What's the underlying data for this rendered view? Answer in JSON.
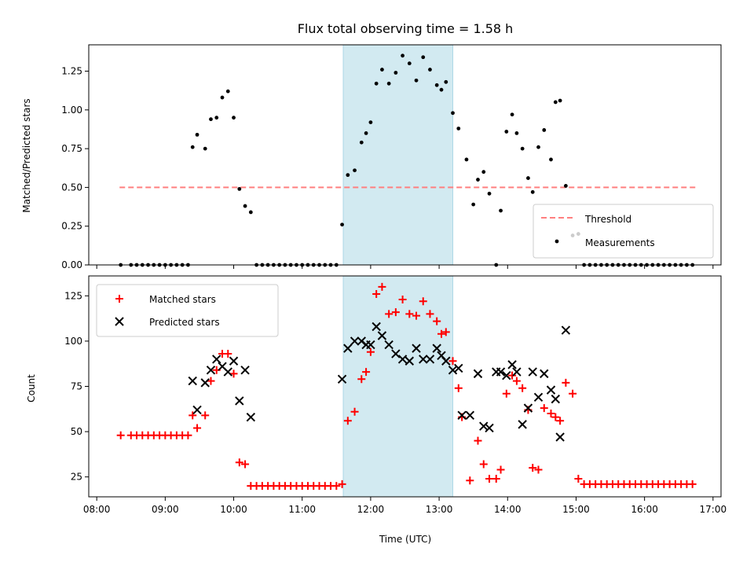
{
  "chart_data": [
    {
      "type": "scatter",
      "title": "Flux total observing time = 1.58 h",
      "xlabel": "",
      "ylabel": "Matched/Predicted stars",
      "xlim": [
        "08:00",
        "17:00"
      ],
      "ylim": [
        0,
        1.42
      ],
      "yticks": [
        0,
        0.25,
        0.5,
        0.75,
        1.0,
        1.25
      ],
      "ytick_labels": [
        "0.00",
        "0.25",
        "0.50",
        "0.75",
        "1.00",
        "1.25"
      ],
      "shaded_region": {
        "x": [
          "11:36",
          "13:12"
        ],
        "color": "#add8e6"
      },
      "legend": {
        "location": "lower right"
      },
      "series": [
        {
          "name": "Threshold",
          "style": "dashed-line",
          "color": "#ff7f7f",
          "x": [
            "08:20",
            "16:45"
          ],
          "y": [
            0.5,
            0.5
          ]
        },
        {
          "name": "Measurements",
          "style": "dot",
          "color": "#000000",
          "x": [
            "08:21",
            "08:30",
            "08:35",
            "08:40",
            "08:45",
            "08:50",
            "08:55",
            "09:00",
            "09:05",
            "09:10",
            "09:15",
            "09:20",
            "09:24",
            "09:28",
            "09:35",
            "09:40",
            "09:45",
            "09:50",
            "09:55",
            "10:00",
            "10:05",
            "10:10",
            "10:15",
            "10:20",
            "10:25",
            "10:30",
            "10:35",
            "10:40",
            "10:45",
            "10:50",
            "10:55",
            "11:00",
            "11:05",
            "11:10",
            "11:15",
            "11:20",
            "11:25",
            "11:30",
            "11:35",
            "11:40",
            "11:46",
            "11:52",
            "11:56",
            "12:00",
            "12:05",
            "12:10",
            "12:16",
            "12:22",
            "12:28",
            "12:34",
            "12:40",
            "12:46",
            "12:52",
            "12:58",
            "13:02",
            "13:06",
            "13:12",
            "13:17",
            "13:24",
            "13:30",
            "13:34",
            "13:39",
            "13:44",
            "13:50",
            "13:54",
            "13:59",
            "14:04",
            "14:08",
            "14:13",
            "14:18",
            "14:22",
            "14:27",
            "14:32",
            "14:38",
            "14:42",
            "14:46",
            "14:51",
            "14:57",
            "15:02",
            "15:07",
            "15:12",
            "15:17",
            "15:22",
            "15:27",
            "15:32",
            "15:37",
            "15:42",
            "15:47",
            "15:52",
            "15:57",
            "16:02",
            "16:07",
            "16:12",
            "16:17",
            "16:22",
            "16:27",
            "16:32",
            "16:37",
            "16:42"
          ],
          "y": [
            0,
            0,
            0,
            0,
            0,
            0,
            0,
            0,
            0,
            0,
            0,
            0,
            0.76,
            0.84,
            0.75,
            0.94,
            0.95,
            1.08,
            1.12,
            0.95,
            0.49,
            0.38,
            0.34,
            0,
            0,
            0,
            0,
            0,
            0,
            0,
            0,
            0,
            0,
            0,
            0,
            0,
            0,
            0,
            0.26,
            0.58,
            0.61,
            0.79,
            0.85,
            0.92,
            1.17,
            1.26,
            1.17,
            1.24,
            1.35,
            1.3,
            1.19,
            1.34,
            1.26,
            1.16,
            1.13,
            1.18,
            0.98,
            0.88,
            0.68,
            0.39,
            0.55,
            0.6,
            0.46,
            0,
            0.35,
            0.86,
            0.97,
            0.85,
            0.75,
            0.56,
            0.47,
            0.76,
            0.87,
            0.68,
            1.05,
            1.06,
            0.51,
            0.19,
            0.2,
            0,
            0,
            0,
            0,
            0,
            0,
            0,
            0,
            0,
            0,
            0,
            0,
            0,
            0,
            0,
            0,
            0,
            0,
            0,
            0
          ]
        }
      ]
    },
    {
      "type": "scatter",
      "title": "",
      "xlabel": "Time (UTC)",
      "ylabel": "Count",
      "xlim": [
        "08:00",
        "17:00"
      ],
      "ylim": [
        14,
        136
      ],
      "xtick_labels": [
        "08:00",
        "09:00",
        "10:00",
        "11:00",
        "12:00",
        "13:00",
        "14:00",
        "15:00",
        "16:00",
        "17:00"
      ],
      "yticks": [
        25,
        50,
        75,
        100,
        125
      ],
      "ytick_labels": [
        "25",
        "50",
        "75",
        "100",
        "125"
      ],
      "shaded_region": {
        "x": [
          "11:36",
          "13:12"
        ],
        "color": "#add8e6"
      },
      "legend": {
        "location": "upper left"
      },
      "series": [
        {
          "name": "Matched stars",
          "marker": "+",
          "color": "#ff0000",
          "points": [
            [
              "08:21",
              48
            ],
            [
              "08:30",
              48
            ],
            [
              "08:35",
              48
            ],
            [
              "08:40",
              48
            ],
            [
              "08:45",
              48
            ],
            [
              "08:50",
              48
            ],
            [
              "08:55",
              48
            ],
            [
              "09:00",
              48
            ],
            [
              "09:05",
              48
            ],
            [
              "09:10",
              48
            ],
            [
              "09:15",
              48
            ],
            [
              "09:20",
              48
            ],
            [
              "09:24",
              59
            ],
            [
              "09:28",
              52
            ],
            [
              "09:35",
              59
            ],
            [
              "09:40",
              78
            ],
            [
              "09:45",
              84
            ],
            [
              "09:50",
              93
            ],
            [
              "09:55",
              93
            ],
            [
              "10:00",
              82
            ],
            [
              "10:05",
              33
            ],
            [
              "10:10",
              32
            ],
            [
              "10:15",
              20
            ],
            [
              "10:20",
              20
            ],
            [
              "10:25",
              20
            ],
            [
              "10:30",
              20
            ],
            [
              "10:35",
              20
            ],
            [
              "10:40",
              20
            ],
            [
              "10:45",
              20
            ],
            [
              "10:50",
              20
            ],
            [
              "10:55",
              20
            ],
            [
              "11:00",
              20
            ],
            [
              "11:05",
              20
            ],
            [
              "11:10",
              20
            ],
            [
              "11:15",
              20
            ],
            [
              "11:20",
              20
            ],
            [
              "11:25",
              20
            ],
            [
              "11:30",
              20
            ],
            [
              "11:35",
              21
            ],
            [
              "11:40",
              56
            ],
            [
              "11:46",
              61
            ],
            [
              "11:52",
              79
            ],
            [
              "11:56",
              83
            ],
            [
              "12:00",
              94
            ],
            [
              "12:05",
              126
            ],
            [
              "12:10",
              130
            ],
            [
              "12:16",
              115
            ],
            [
              "12:22",
              116
            ],
            [
              "12:28",
              123
            ],
            [
              "12:34",
              115
            ],
            [
              "12:40",
              114
            ],
            [
              "12:46",
              122
            ],
            [
              "12:52",
              115
            ],
            [
              "12:58",
              111
            ],
            [
              "13:02",
              104
            ],
            [
              "13:06",
              105
            ],
            [
              "13:12",
              89
            ],
            [
              "13:17",
              74
            ],
            [
              "13:20",
              58
            ],
            [
              "13:27",
              23
            ],
            [
              "13:34",
              45
            ],
            [
              "13:39",
              32
            ],
            [
              "13:44",
              24
            ],
            [
              "13:50",
              24
            ],
            [
              "13:54",
              29
            ],
            [
              "13:59",
              71
            ],
            [
              "14:04",
              81
            ],
            [
              "14:08",
              78
            ],
            [
              "14:13",
              74
            ],
            [
              "14:18",
              62
            ],
            [
              "14:22",
              30
            ],
            [
              "14:27",
              29
            ],
            [
              "14:32",
              63
            ],
            [
              "14:38",
              60
            ],
            [
              "14:42",
              58
            ],
            [
              "14:46",
              56
            ],
            [
              "14:51",
              77
            ],
            [
              "14:57",
              71
            ],
            [
              "15:02",
              24
            ],
            [
              "15:07",
              21
            ],
            [
              "15:12",
              21
            ],
            [
              "15:17",
              21
            ],
            [
              "15:22",
              21
            ],
            [
              "15:27",
              21
            ],
            [
              "15:32",
              21
            ],
            [
              "15:37",
              21
            ],
            [
              "15:42",
              21
            ],
            [
              "15:47",
              21
            ],
            [
              "15:52",
              21
            ],
            [
              "15:57",
              21
            ],
            [
              "16:02",
              21
            ],
            [
              "16:07",
              21
            ],
            [
              "16:12",
              21
            ],
            [
              "16:17",
              21
            ],
            [
              "16:22",
              21
            ],
            [
              "16:27",
              21
            ],
            [
              "16:32",
              21
            ],
            [
              "16:37",
              21
            ],
            [
              "16:42",
              21
            ]
          ]
        },
        {
          "name": "Predicted stars",
          "marker": "x",
          "color": "#000000",
          "points": [
            [
              "09:24",
              78
            ],
            [
              "09:28",
              62
            ],
            [
              "09:35",
              77
            ],
            [
              "09:40",
              84
            ],
            [
              "09:45",
              90
            ],
            [
              "09:50",
              86
            ],
            [
              "09:55",
              83
            ],
            [
              "10:00",
              89
            ],
            [
              "10:05",
              67
            ],
            [
              "10:10",
              84
            ],
            [
              "10:15",
              58
            ],
            [
              "11:35",
              79
            ],
            [
              "11:40",
              96
            ],
            [
              "11:46",
              100
            ],
            [
              "11:52",
              100
            ],
            [
              "11:56",
              98
            ],
            [
              "12:00",
              98
            ],
            [
              "12:05",
              108
            ],
            [
              "12:10",
              103
            ],
            [
              "12:16",
              98
            ],
            [
              "12:22",
              93
            ],
            [
              "12:28",
              90
            ],
            [
              "12:34",
              89
            ],
            [
              "12:40",
              96
            ],
            [
              "12:46",
              90
            ],
            [
              "12:52",
              90
            ],
            [
              "12:58",
              96
            ],
            [
              "13:02",
              92
            ],
            [
              "13:06",
              89
            ],
            [
              "13:12",
              84
            ],
            [
              "13:17",
              85
            ],
            [
              "13:20",
              59
            ],
            [
              "13:27",
              59
            ],
            [
              "13:34",
              82
            ],
            [
              "13:39",
              53
            ],
            [
              "13:44",
              52
            ],
            [
              "13:50",
              83
            ],
            [
              "13:54",
              83
            ],
            [
              "13:59",
              81
            ],
            [
              "14:04",
              87
            ],
            [
              "14:08",
              83
            ],
            [
              "14:13",
              54
            ],
            [
              "14:18",
              63
            ],
            [
              "14:22",
              83
            ],
            [
              "14:27",
              69
            ],
            [
              "14:32",
              82
            ],
            [
              "14:38",
              73
            ],
            [
              "14:42",
              68
            ],
            [
              "14:46",
              47
            ],
            [
              "14:51",
              106
            ]
          ]
        }
      ]
    }
  ]
}
